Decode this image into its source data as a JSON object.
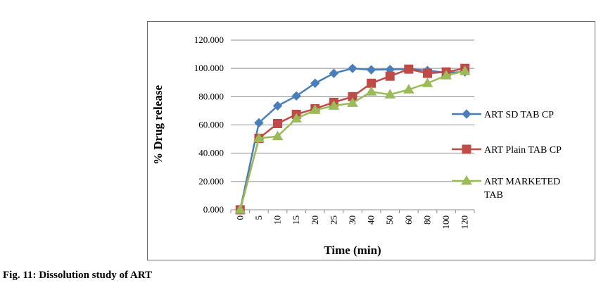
{
  "caption": "Fig. 11: Dissolution study of ART",
  "chart_data": {
    "type": "line",
    "xlabel": "Time (min)",
    "ylabel": "% Drug release",
    "categories": [
      "0",
      "5",
      "10",
      "15",
      "20",
      "25",
      "30",
      "40",
      "50",
      "60",
      "80",
      "100",
      "120"
    ],
    "yticks": [
      "0.000",
      "20.000",
      "40.000",
      "60.000",
      "80.000",
      "100.000",
      "120.000"
    ],
    "ylim": [
      0,
      120
    ],
    "grid": "horizontal",
    "legend_position": "right",
    "series": [
      {
        "name": "ART SD TAB CP",
        "legend_lines": [
          "ART SD TAB CP"
        ],
        "color": "#4a7ebb",
        "marker": "diamond",
        "values": [
          0,
          61.5,
          73.5,
          80.5,
          89.5,
          96.5,
          100,
          99,
          99.2,
          99.5,
          98.5,
          97,
          97.5
        ]
      },
      {
        "name": "ART Plain TAB CP",
        "legend_lines": [
          "ART Plain TAB CP"
        ],
        "color": "#be4b48",
        "marker": "square",
        "values": [
          0,
          50.5,
          61,
          67.5,
          71.5,
          76,
          80,
          89.5,
          94.5,
          99.5,
          96.5,
          97.5,
          100
        ]
      },
      {
        "name": "ART MARKETED TAB",
        "legend_lines": [
          "ART MARKETED",
          "TAB"
        ],
        "color": "#9bbb59",
        "marker": "triangle",
        "values": [
          0,
          50.5,
          52,
          64.5,
          70.5,
          73.5,
          75.5,
          83.5,
          81.5,
          85,
          89.5,
          95,
          98
        ]
      }
    ]
  }
}
